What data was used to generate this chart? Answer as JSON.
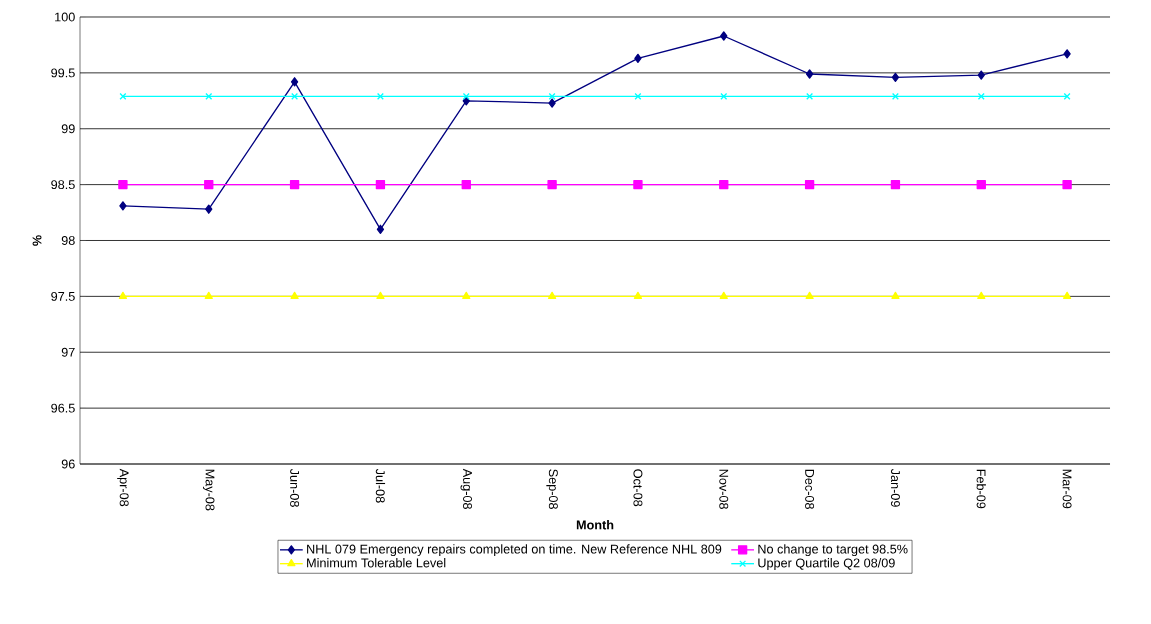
{
  "chart_data": {
    "type": "line",
    "xlabel": "Month",
    "ylabel": "%",
    "categories": [
      "Apr-08",
      "May-08",
      "Jun-08",
      "Jul-08",
      "Aug-08",
      "Sep-08",
      "Oct-08",
      "Nov-08",
      "Dec-08",
      "Jan-09",
      "Feb-09",
      "Mar-09"
    ],
    "series": [
      {
        "name": "NHL 079 Emergency repairs completed on time. New Reference NHL 809",
        "color": "#000080",
        "marker": "diamond",
        "values": [
          98.31,
          98.28,
          99.42,
          98.1,
          99.25,
          99.23,
          99.63,
          99.83,
          99.49,
          99.46,
          99.48,
          99.67
        ]
      },
      {
        "name": "No change to target 98.5%",
        "color": "#ff00ff",
        "marker": "square",
        "values": [
          98.5,
          98.5,
          98.5,
          98.5,
          98.5,
          98.5,
          98.5,
          98.5,
          98.5,
          98.5,
          98.5,
          98.5
        ]
      },
      {
        "name": "Minimum Tolerable Level",
        "color": "#ffff00",
        "marker": "triangle",
        "values": [
          97.5,
          97.5,
          97.5,
          97.5,
          97.5,
          97.5,
          97.5,
          97.5,
          97.5,
          97.5,
          97.5,
          97.5
        ]
      },
      {
        "name": "Upper Quartile Q2 08/09",
        "color": "#00ffff",
        "marker": "cross",
        "values": [
          99.29,
          99.29,
          99.29,
          99.29,
          99.29,
          99.29,
          99.29,
          99.29,
          99.29,
          99.29,
          99.29,
          99.29
        ]
      }
    ],
    "ylim": [
      96,
      100
    ],
    "yticks": [
      96,
      96.5,
      97,
      97.5,
      98,
      98.5,
      99,
      99.5,
      100
    ],
    "grid": "y",
    "legend": "bottom"
  }
}
